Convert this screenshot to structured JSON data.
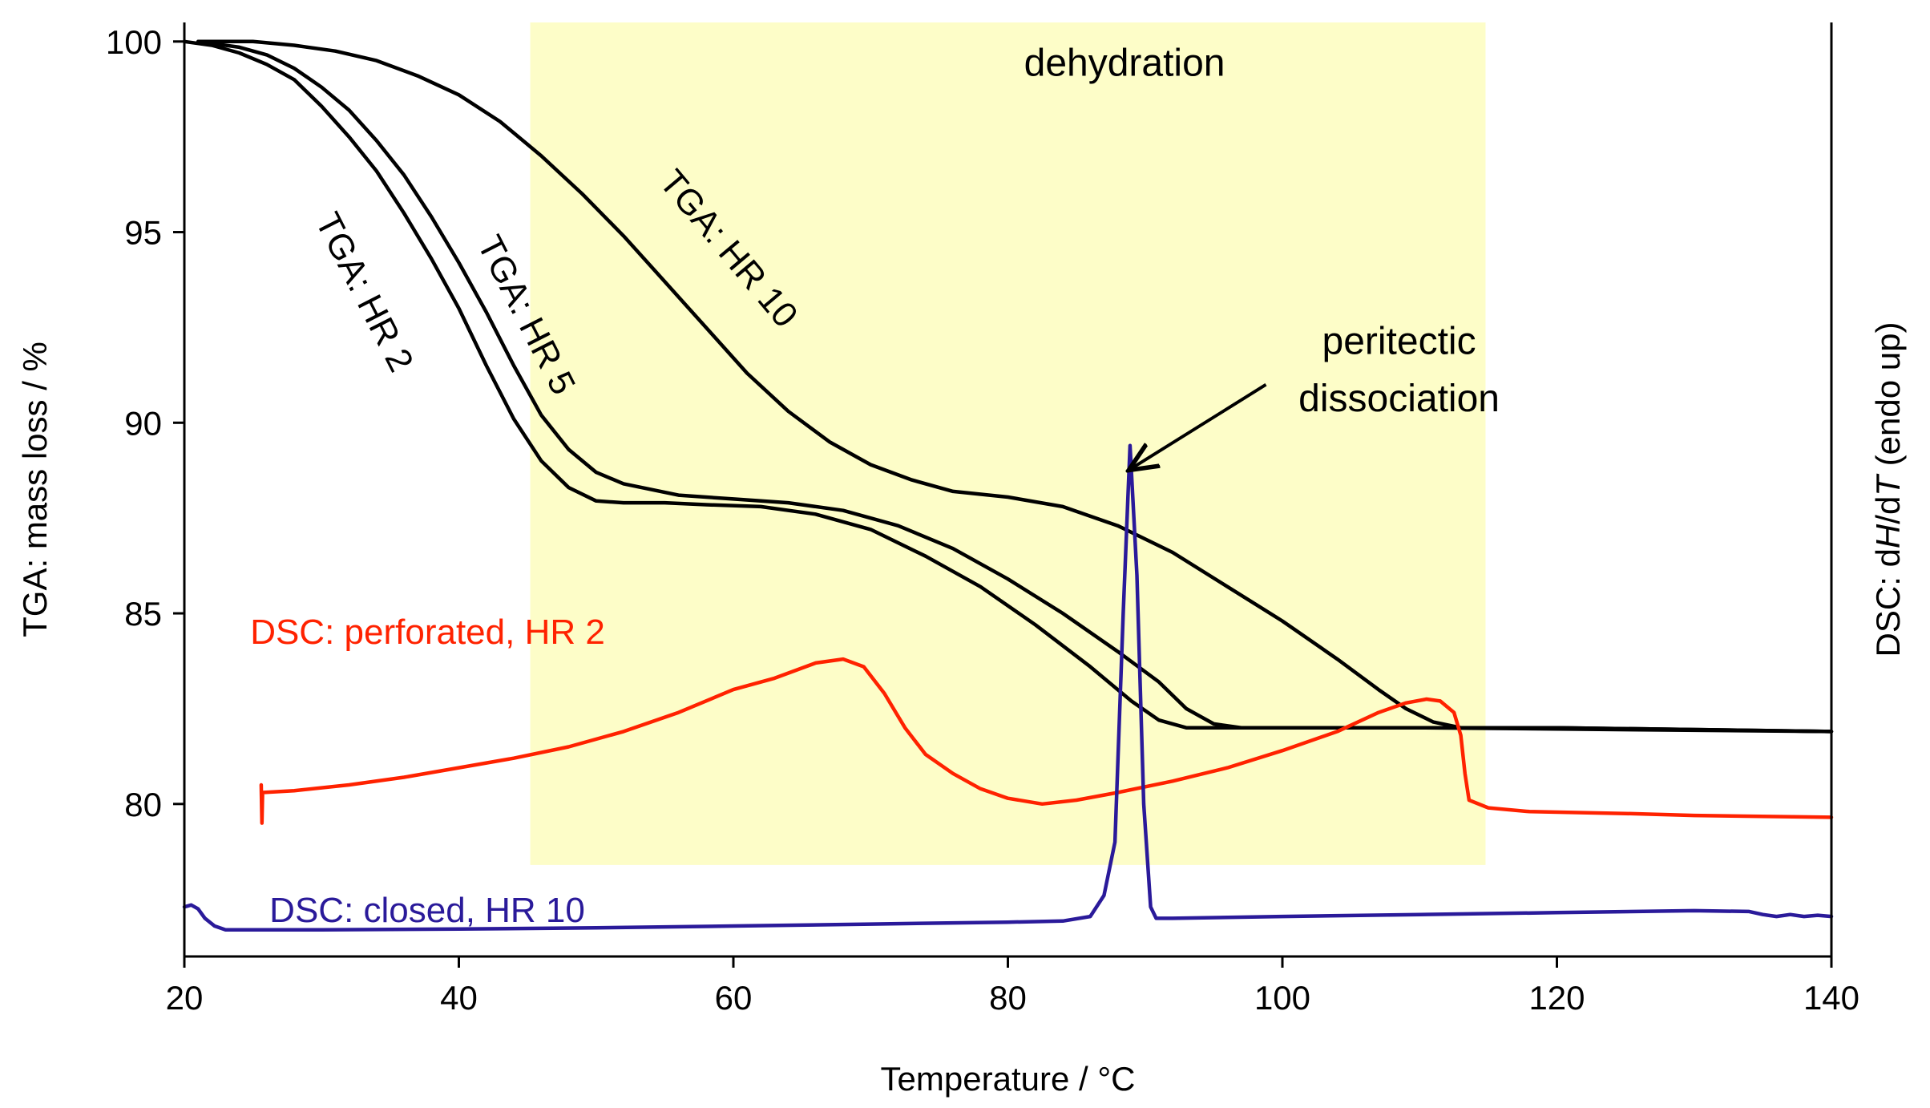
{
  "chart_data": {
    "type": "line",
    "xlabel": "Temperature / °C",
    "ylabel_left": "TGA: mass loss / %",
    "ylabel_right_prefix": "DSC: d",
    "ylabel_right_H": "H",
    "ylabel_right_slash": "/d",
    "ylabel_right_T": "T",
    "ylabel_right_suffix": " (endo up)",
    "xlim": [
      20,
      140
    ],
    "ylim": [
      76,
      100.5
    ],
    "x_ticks": [
      20,
      40,
      60,
      80,
      100,
      120,
      140
    ],
    "y_ticks": [
      80,
      85,
      90,
      95,
      100
    ],
    "colors": {
      "tga": "#000000",
      "dsc_perforated": "#ff2200",
      "dsc_closed": "#2a1a9a",
      "shade": "#fdfdc8"
    },
    "shaded_region": {
      "label": "dehydration",
      "x": [
        45.2,
        114.8
      ],
      "y": [
        78.4,
        100.5
      ]
    },
    "annotation": {
      "line1": "peritectic",
      "line2": "dissociation",
      "arrow_from": [
        98.8,
        91.0
      ],
      "arrow_to": [
        89.0,
        88.8
      ]
    },
    "series": [
      {
        "name": "TGA: HR 2",
        "color": "#000000",
        "points": [
          [
            20,
            100
          ],
          [
            22,
            99.9
          ],
          [
            24,
            99.7
          ],
          [
            26,
            99.4
          ],
          [
            28,
            99
          ],
          [
            30,
            98.3
          ],
          [
            32,
            97.5
          ],
          [
            34,
            96.6
          ],
          [
            36,
            95.5
          ],
          [
            38,
            94.3
          ],
          [
            40,
            93
          ],
          [
            42,
            91.5
          ],
          [
            44,
            90.1
          ],
          [
            46,
            89
          ],
          [
            48,
            88.3
          ],
          [
            50,
            87.95
          ],
          [
            52,
            87.9
          ],
          [
            55,
            87.9
          ],
          [
            58,
            87.85
          ],
          [
            62,
            87.8
          ],
          [
            66,
            87.6
          ],
          [
            70,
            87.2
          ],
          [
            74,
            86.5
          ],
          [
            78,
            85.7
          ],
          [
            82,
            84.7
          ],
          [
            86,
            83.6
          ],
          [
            89,
            82.7
          ],
          [
            91,
            82.2
          ],
          [
            93,
            82
          ],
          [
            100,
            82
          ],
          [
            120,
            82
          ],
          [
            140,
            81.9
          ]
        ]
      },
      {
        "name": "TGA: HR 5",
        "color": "#000000",
        "points": [
          [
            22,
            99.95
          ],
          [
            24,
            99.85
          ],
          [
            26,
            99.65
          ],
          [
            28,
            99.3
          ],
          [
            30,
            98.8
          ],
          [
            32,
            98.2
          ],
          [
            34,
            97.4
          ],
          [
            36,
            96.5
          ],
          [
            38,
            95.4
          ],
          [
            40,
            94.2
          ],
          [
            42,
            92.9
          ],
          [
            44,
            91.5
          ],
          [
            46,
            90.2
          ],
          [
            48,
            89.3
          ],
          [
            50,
            88.7
          ],
          [
            52,
            88.4
          ],
          [
            56,
            88.1
          ],
          [
            60,
            88
          ],
          [
            64,
            87.9
          ],
          [
            68,
            87.7
          ],
          [
            72,
            87.3
          ],
          [
            76,
            86.7
          ],
          [
            80,
            85.9
          ],
          [
            84,
            85
          ],
          [
            88,
            84
          ],
          [
            91,
            83.2
          ],
          [
            93,
            82.5
          ],
          [
            95,
            82.1
          ],
          [
            97,
            82
          ],
          [
            110,
            82
          ],
          [
            140,
            81.9
          ]
        ]
      },
      {
        "name": "TGA: HR 10",
        "color": "#000000",
        "points": [
          [
            21,
            100
          ],
          [
            25,
            100
          ],
          [
            28,
            99.9
          ],
          [
            31,
            99.75
          ],
          [
            34,
            99.5
          ],
          [
            37,
            99.1
          ],
          [
            40,
            98.6
          ],
          [
            43,
            97.9
          ],
          [
            46,
            97
          ],
          [
            49,
            96
          ],
          [
            52,
            94.9
          ],
          [
            55,
            93.7
          ],
          [
            58,
            92.5
          ],
          [
            61,
            91.3
          ],
          [
            64,
            90.3
          ],
          [
            67,
            89.5
          ],
          [
            70,
            88.9
          ],
          [
            73,
            88.5
          ],
          [
            76,
            88.2
          ],
          [
            80,
            88.05
          ],
          [
            84,
            87.8
          ],
          [
            88,
            87.3
          ],
          [
            92,
            86.6
          ],
          [
            96,
            85.7
          ],
          [
            100,
            84.8
          ],
          [
            104,
            83.8
          ],
          [
            107,
            83
          ],
          [
            109,
            82.5
          ],
          [
            111,
            82.15
          ],
          [
            113,
            82
          ],
          [
            120,
            82
          ],
          [
            140,
            81.9
          ]
        ]
      },
      {
        "name": "DSC: perforated, HR 2",
        "color": "#ff2200",
        "points": [
          [
            25.6,
            80.5
          ],
          [
            25.65,
            79.5
          ],
          [
            25.7,
            80.3
          ],
          [
            28,
            80.35
          ],
          [
            32,
            80.5
          ],
          [
            36,
            80.7
          ],
          [
            40,
            80.95
          ],
          [
            44,
            81.2
          ],
          [
            48,
            81.5
          ],
          [
            52,
            81.9
          ],
          [
            56,
            82.4
          ],
          [
            60,
            83
          ],
          [
            63,
            83.3
          ],
          [
            66,
            83.7
          ],
          [
            68,
            83.8
          ],
          [
            69.5,
            83.6
          ],
          [
            71,
            82.9
          ],
          [
            72.5,
            82
          ],
          [
            74,
            81.3
          ],
          [
            76,
            80.8
          ],
          [
            78,
            80.4
          ],
          [
            80,
            80.15
          ],
          [
            82.5,
            80
          ],
          [
            85,
            80.1
          ],
          [
            88,
            80.3
          ],
          [
            92,
            80.6
          ],
          [
            96,
            80.95
          ],
          [
            100,
            81.4
          ],
          [
            104,
            81.9
          ],
          [
            107,
            82.4
          ],
          [
            109,
            82.65
          ],
          [
            110.5,
            82.75
          ],
          [
            111.5,
            82.7
          ],
          [
            112.5,
            82.4
          ],
          [
            113,
            81.8
          ],
          [
            113.3,
            80.8
          ],
          [
            113.6,
            80.1
          ],
          [
            115,
            79.9
          ],
          [
            118,
            79.8
          ],
          [
            125,
            79.75
          ],
          [
            130,
            79.7
          ],
          [
            140,
            79.65
          ]
        ]
      },
      {
        "name": "DSC: closed, HR 10",
        "color": "#2a1a9a",
        "points": [
          [
            20,
            77.3
          ],
          [
            20.5,
            77.35
          ],
          [
            21,
            77.25
          ],
          [
            21.5,
            77
          ],
          [
            22.2,
            76.8
          ],
          [
            23,
            76.7
          ],
          [
            30,
            76.7
          ],
          [
            40,
            76.72
          ],
          [
            50,
            76.75
          ],
          [
            60,
            76.8
          ],
          [
            70,
            76.85
          ],
          [
            80,
            76.9
          ],
          [
            84,
            76.93
          ],
          [
            86,
            77.05
          ],
          [
            87,
            77.6
          ],
          [
            87.8,
            79
          ],
          [
            88.4,
            85
          ],
          [
            88.9,
            89.4
          ],
          [
            89.4,
            86
          ],
          [
            89.9,
            80
          ],
          [
            90.4,
            77.3
          ],
          [
            90.8,
            77
          ],
          [
            92,
            77
          ],
          [
            100,
            77.05
          ],
          [
            110,
            77.1
          ],
          [
            120,
            77.15
          ],
          [
            130,
            77.2
          ],
          [
            134,
            77.18
          ],
          [
            135,
            77.1
          ],
          [
            136,
            77.05
          ],
          [
            137,
            77.1
          ],
          [
            138,
            77.05
          ],
          [
            139,
            77.08
          ],
          [
            140,
            77.05
          ]
        ]
      }
    ],
    "series_labels": [
      {
        "text": "TGA: HR 2",
        "color": "#000000",
        "x": 29.5,
        "y": 95.3,
        "rotate": 63
      },
      {
        "text": "TGA: HR 5",
        "color": "#000000",
        "x": 41.3,
        "y": 94.7,
        "rotate": 63
      },
      {
        "text": "TGA: HR 10",
        "color": "#000000",
        "x": 54.5,
        "y": 96.3,
        "rotate": 50
      },
      {
        "text": "DSC: perforated, HR 2",
        "color": "#ff2200",
        "x": 24.8,
        "y": 84.2,
        "rotate": 0
      },
      {
        "text": "DSC: closed, HR 10",
        "color": "#2a1a9a",
        "x": 26.2,
        "y": 76.9,
        "rotate": 0
      }
    ]
  }
}
